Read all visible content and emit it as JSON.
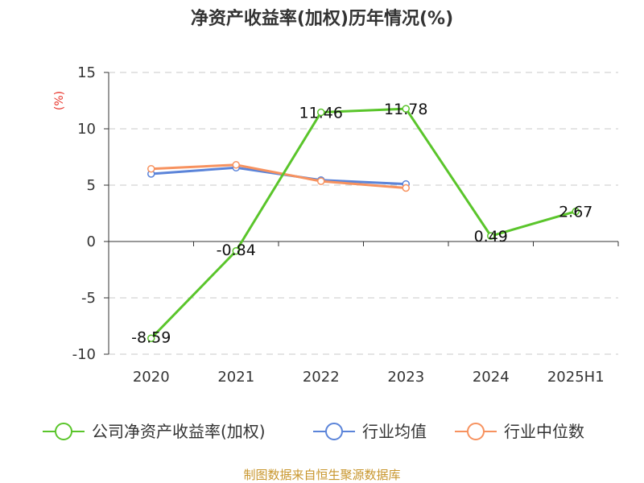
{
  "chart_data": {
    "type": "line",
    "title": "净资产收益率(加权)历年情况(%)",
    "ylabel": "(%)",
    "categories": [
      "2020",
      "2021",
      "2022",
      "2023",
      "2024",
      "2025H1"
    ],
    "ylim": [
      -10,
      15
    ],
    "yticks": [
      15,
      10,
      5,
      0,
      -5,
      -10
    ],
    "grid": true,
    "legend_position": "bottom",
    "series": [
      {
        "name": "公司净资产收益率(加权)",
        "color": "#5ac52b",
        "values": [
          -8.59,
          -0.84,
          11.46,
          11.78,
          0.49,
          2.67
        ],
        "labels": [
          "-8.59",
          "-0.84",
          "11.46",
          "11.78",
          "0.49",
          "2.67"
        ],
        "show_labels": true
      },
      {
        "name": "行业均值",
        "color": "#5b84d9",
        "values": [
          6.0,
          6.55,
          5.45,
          5.1,
          null,
          null
        ],
        "show_labels": false
      },
      {
        "name": "行业中位数",
        "color": "#f7925f",
        "values": [
          6.45,
          6.8,
          5.35,
          4.75,
          null,
          null
        ],
        "show_labels": false
      }
    ]
  },
  "footer": {
    "source": "制图数据来自恒生聚源数据库"
  }
}
